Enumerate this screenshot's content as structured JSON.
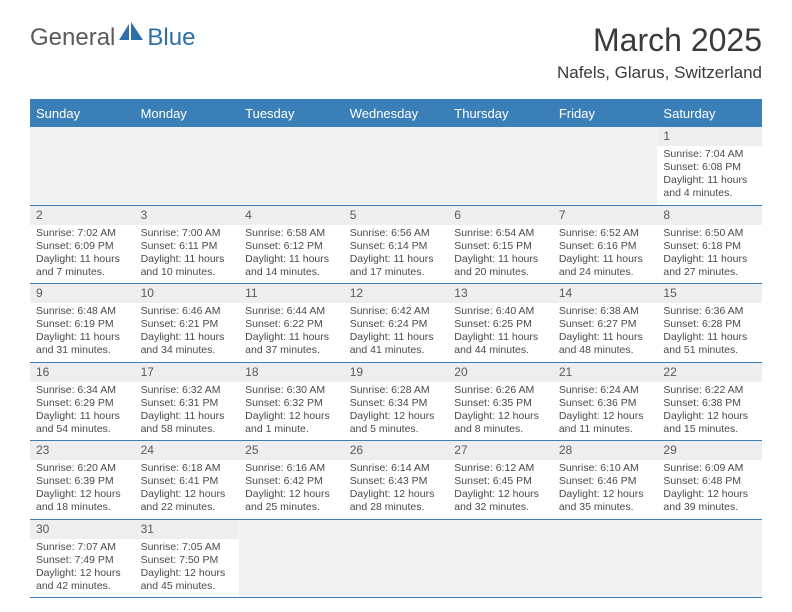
{
  "logo": {
    "text1": "General",
    "text2": "Blue"
  },
  "title": "March 2025",
  "location": "Nafels, Glarus, Switzerland",
  "colors": {
    "header_bg": "#3b7fb8",
    "header_text": "#ffffff",
    "daynum_bg": "#eeeeee",
    "border": "#3b7fb8",
    "logo_blue": "#2f6fa8",
    "logo_gray": "#5a5a5a"
  },
  "dow": [
    "Sunday",
    "Monday",
    "Tuesday",
    "Wednesday",
    "Thursday",
    "Friday",
    "Saturday"
  ],
  "weeks": [
    [
      {
        "blank": true
      },
      {
        "blank": true
      },
      {
        "blank": true
      },
      {
        "blank": true
      },
      {
        "blank": true
      },
      {
        "blank": true
      },
      {
        "n": "1",
        "sr": "7:04 AM",
        "ss": "6:08 PM",
        "dl": "11 hours and 4 minutes."
      }
    ],
    [
      {
        "n": "2",
        "sr": "7:02 AM",
        "ss": "6:09 PM",
        "dl": "11 hours and 7 minutes."
      },
      {
        "n": "3",
        "sr": "7:00 AM",
        "ss": "6:11 PM",
        "dl": "11 hours and 10 minutes."
      },
      {
        "n": "4",
        "sr": "6:58 AM",
        "ss": "6:12 PM",
        "dl": "11 hours and 14 minutes."
      },
      {
        "n": "5",
        "sr": "6:56 AM",
        "ss": "6:14 PM",
        "dl": "11 hours and 17 minutes."
      },
      {
        "n": "6",
        "sr": "6:54 AM",
        "ss": "6:15 PM",
        "dl": "11 hours and 20 minutes."
      },
      {
        "n": "7",
        "sr": "6:52 AM",
        "ss": "6:16 PM",
        "dl": "11 hours and 24 minutes."
      },
      {
        "n": "8",
        "sr": "6:50 AM",
        "ss": "6:18 PM",
        "dl": "11 hours and 27 minutes."
      }
    ],
    [
      {
        "n": "9",
        "sr": "6:48 AM",
        "ss": "6:19 PM",
        "dl": "11 hours and 31 minutes."
      },
      {
        "n": "10",
        "sr": "6:46 AM",
        "ss": "6:21 PM",
        "dl": "11 hours and 34 minutes."
      },
      {
        "n": "11",
        "sr": "6:44 AM",
        "ss": "6:22 PM",
        "dl": "11 hours and 37 minutes."
      },
      {
        "n": "12",
        "sr": "6:42 AM",
        "ss": "6:24 PM",
        "dl": "11 hours and 41 minutes."
      },
      {
        "n": "13",
        "sr": "6:40 AM",
        "ss": "6:25 PM",
        "dl": "11 hours and 44 minutes."
      },
      {
        "n": "14",
        "sr": "6:38 AM",
        "ss": "6:27 PM",
        "dl": "11 hours and 48 minutes."
      },
      {
        "n": "15",
        "sr": "6:36 AM",
        "ss": "6:28 PM",
        "dl": "11 hours and 51 minutes."
      }
    ],
    [
      {
        "n": "16",
        "sr": "6:34 AM",
        "ss": "6:29 PM",
        "dl": "11 hours and 54 minutes."
      },
      {
        "n": "17",
        "sr": "6:32 AM",
        "ss": "6:31 PM",
        "dl": "11 hours and 58 minutes."
      },
      {
        "n": "18",
        "sr": "6:30 AM",
        "ss": "6:32 PM",
        "dl": "12 hours and 1 minute."
      },
      {
        "n": "19",
        "sr": "6:28 AM",
        "ss": "6:34 PM",
        "dl": "12 hours and 5 minutes."
      },
      {
        "n": "20",
        "sr": "6:26 AM",
        "ss": "6:35 PM",
        "dl": "12 hours and 8 minutes."
      },
      {
        "n": "21",
        "sr": "6:24 AM",
        "ss": "6:36 PM",
        "dl": "12 hours and 11 minutes."
      },
      {
        "n": "22",
        "sr": "6:22 AM",
        "ss": "6:38 PM",
        "dl": "12 hours and 15 minutes."
      }
    ],
    [
      {
        "n": "23",
        "sr": "6:20 AM",
        "ss": "6:39 PM",
        "dl": "12 hours and 18 minutes."
      },
      {
        "n": "24",
        "sr": "6:18 AM",
        "ss": "6:41 PM",
        "dl": "12 hours and 22 minutes."
      },
      {
        "n": "25",
        "sr": "6:16 AM",
        "ss": "6:42 PM",
        "dl": "12 hours and 25 minutes."
      },
      {
        "n": "26",
        "sr": "6:14 AM",
        "ss": "6:43 PM",
        "dl": "12 hours and 28 minutes."
      },
      {
        "n": "27",
        "sr": "6:12 AM",
        "ss": "6:45 PM",
        "dl": "12 hours and 32 minutes."
      },
      {
        "n": "28",
        "sr": "6:10 AM",
        "ss": "6:46 PM",
        "dl": "12 hours and 35 minutes."
      },
      {
        "n": "29",
        "sr": "6:09 AM",
        "ss": "6:48 PM",
        "dl": "12 hours and 39 minutes."
      }
    ],
    [
      {
        "n": "30",
        "sr": "7:07 AM",
        "ss": "7:49 PM",
        "dl": "12 hours and 42 minutes."
      },
      {
        "n": "31",
        "sr": "7:05 AM",
        "ss": "7:50 PM",
        "dl": "12 hours and 45 minutes."
      },
      {
        "blank": true
      },
      {
        "blank": true
      },
      {
        "blank": true
      },
      {
        "blank": true
      },
      {
        "blank": true
      }
    ]
  ],
  "labels": {
    "sunrise": "Sunrise: ",
    "sunset": "Sunset: ",
    "daylight": "Daylight: "
  }
}
